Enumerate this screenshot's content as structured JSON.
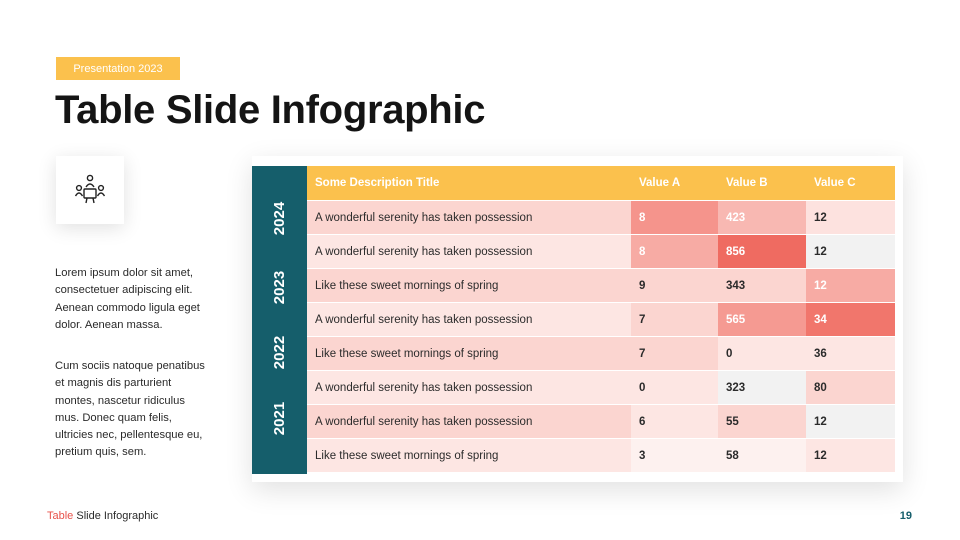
{
  "badge": "Presentation 2023",
  "title": "Table Slide Infographic",
  "icon": "team-meeting-icon",
  "paragraph1": "Lorem  ipsum dolor sit amet, consectetuer adipiscing elit. Aenean commodo ligula eget dolor. Aenean massa.",
  "paragraph2": "Cum sociis natoque penatibus et magnis dis parturient montes, nascetur ridiculus mus. Donec quam felis, ultricies nec, pellentesque eu, pretium quis, sem.",
  "years": [
    "2024",
    "2023",
    "2022",
    "2021"
  ],
  "table": {
    "headers": [
      "Some Description Title",
      "Value A",
      "Value B",
      "Value C"
    ],
    "rows": [
      {
        "desc": "A wonderful serenity has taken possession",
        "a": "8",
        "b": "423",
        "c": "12"
      },
      {
        "desc": "A wonderful serenity has taken possession",
        "a": "8",
        "b": "856",
        "c": "12"
      },
      {
        "desc": "Like these sweet mornings of spring",
        "a": "9",
        "b": "343",
        "c": "12"
      },
      {
        "desc": "A wonderful serenity has taken possession",
        "a": "7",
        "b": "565",
        "c": "34"
      },
      {
        "desc": "Like these sweet mornings of spring",
        "a": "7",
        "b": "0",
        "c": "36"
      },
      {
        "desc": "A wonderful serenity has taken possession",
        "a": "0",
        "b": "323",
        "c": "80"
      },
      {
        "desc": "A wonderful serenity has taken possession",
        "a": "6",
        "b": "55",
        "c": "12"
      },
      {
        "desc": "Like these sweet mornings of spring",
        "a": "3",
        "b": "58",
        "c": "12"
      }
    ]
  },
  "footer": {
    "accent": "Table",
    "rest": " Slide Infographic"
  },
  "page_number": "19",
  "colors": {
    "accent_yellow": "#fbc14d",
    "teal": "#155e6b",
    "footer_red": "#e8524a"
  }
}
